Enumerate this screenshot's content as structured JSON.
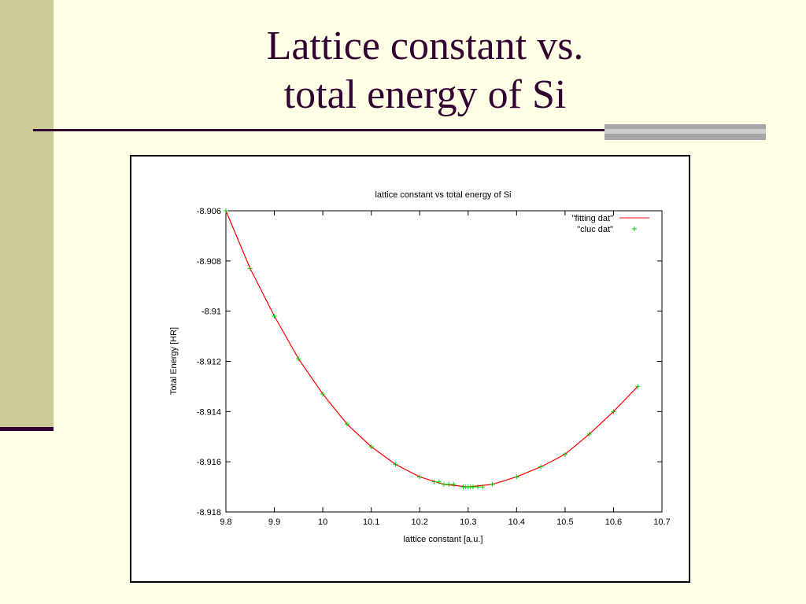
{
  "slide": {
    "title_line1": "Lattice constant vs.",
    "title_line2": "total energy of Si"
  },
  "colors": {
    "background": "#ffffe6",
    "accent_bar": "#cccc99",
    "title_text": "#330033",
    "fit_line": "#ff0000",
    "data_points": "#00cc00"
  },
  "chart_data": {
    "type": "line",
    "title": "lattice constant  vs  total energy of Si",
    "xlabel": "lattice constant [a.u.]",
    "ylabel": "Total Energy [HR]",
    "xlim": [
      9.8,
      10.7
    ],
    "ylim": [
      -8.918,
      -8.906
    ],
    "x_ticks": [
      "9.8",
      "9.9",
      "10",
      "10.1",
      "10.2",
      "10.3",
      "10.4",
      "10.5",
      "10.6",
      "10.7"
    ],
    "y_ticks": [
      "-8.906",
      "-8.908",
      "-8.91",
      "-8.912",
      "-8.914",
      "-8.916",
      "-8.918"
    ],
    "grid": false,
    "legend_position": "top-right",
    "series": [
      {
        "name": "\"fitting dat\"",
        "style": "line",
        "color": "#ff0000",
        "x": [
          9.8,
          9.85,
          9.9,
          9.95,
          10.0,
          10.05,
          10.1,
          10.15,
          10.2,
          10.25,
          10.3,
          10.35,
          10.4,
          10.45,
          10.5,
          10.55,
          10.6,
          10.65
        ],
        "y": [
          -8.906,
          -8.9083,
          -8.9102,
          -8.9119,
          -8.9133,
          -8.9145,
          -8.9154,
          -8.9161,
          -8.9166,
          -8.9169,
          -8.917,
          -8.9169,
          -8.9166,
          -8.9162,
          -8.9157,
          -8.9149,
          -8.914,
          -8.913
        ]
      },
      {
        "name": "\"cluc dat\"",
        "style": "points",
        "color": "#00cc00",
        "x": [
          9.8,
          9.85,
          9.9,
          9.95,
          10.0,
          10.05,
          10.1,
          10.15,
          10.2,
          10.23,
          10.24,
          10.25,
          10.26,
          10.27,
          10.29,
          10.295,
          10.3,
          10.305,
          10.31,
          10.32,
          10.33,
          10.35,
          10.4,
          10.45,
          10.5,
          10.55,
          10.6,
          10.65
        ],
        "y": [
          -8.906,
          -8.9083,
          -8.9102,
          -8.9119,
          -8.9133,
          -8.9145,
          -8.9154,
          -8.9161,
          -8.9166,
          -8.9168,
          -8.9168,
          -8.9169,
          -8.9169,
          -8.9169,
          -8.917,
          -8.917,
          -8.917,
          -8.917,
          -8.917,
          -8.917,
          -8.917,
          -8.9169,
          -8.9166,
          -8.9162,
          -8.9157,
          -8.9149,
          -8.914,
          -8.913
        ]
      }
    ]
  }
}
